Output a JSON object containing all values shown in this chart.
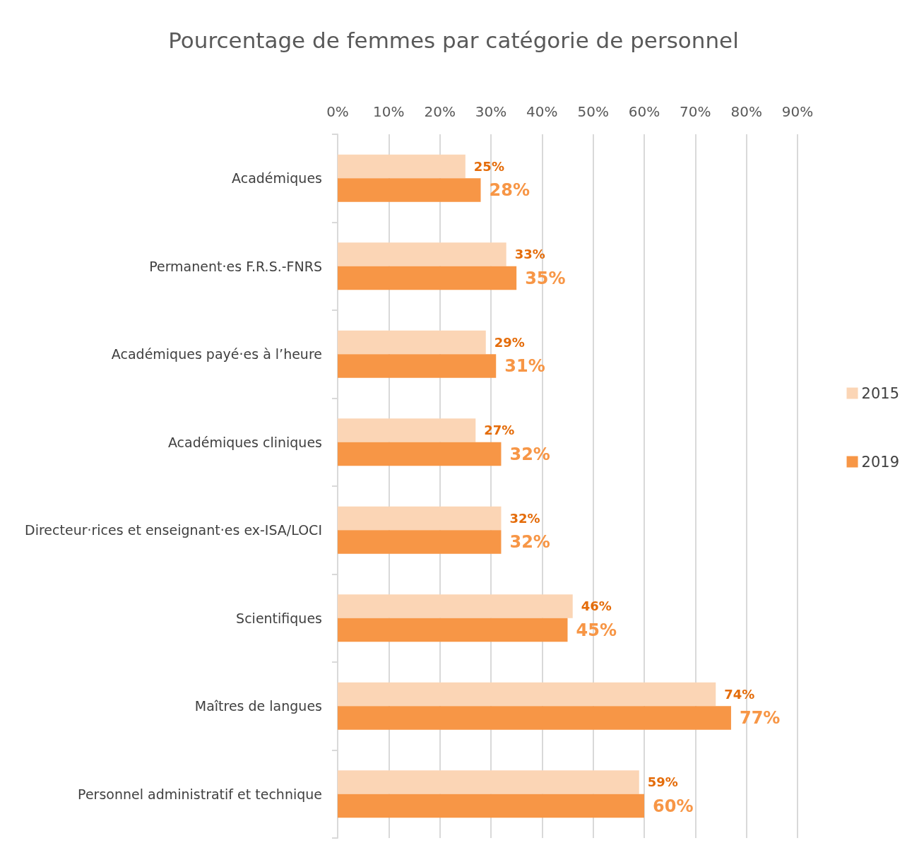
{
  "chart_data": {
    "type": "bar",
    "orientation": "horizontal",
    "title": "Pourcentage de femmes par catégorie de personnel",
    "categories": [
      "Académiques",
      "Permanent·es F.R.S.-FNRS",
      "Académiques payé·es à l’heure",
      "Académiques cliniques",
      "Directeur·rices et enseignant·es ex-ISA/LOCI",
      "Scientifiques",
      "Maîtres de langues",
      "Personnel administratif et technique"
    ],
    "series": [
      {
        "name": "2015",
        "color": "#fbd5b5",
        "values": [
          25,
          33,
          29,
          27,
          32,
          46,
          74,
          59
        ],
        "value_labels": [
          "25%",
          "33%",
          "29%",
          "27%",
          "32%",
          "46%",
          "74%",
          "59%"
        ]
      },
      {
        "name": "2019",
        "color": "#f79646",
        "values": [
          28,
          35,
          31,
          32,
          32,
          45,
          77,
          60
        ],
        "value_labels": [
          "28%",
          "35%",
          "31%",
          "32%",
          "32%",
          "45%",
          "77%",
          "60%"
        ]
      }
    ],
    "xlim": [
      0,
      90
    ],
    "xticks": [
      {
        "value": 0,
        "label": "0%"
      },
      {
        "value": 10,
        "label": "10%"
      },
      {
        "value": 20,
        "label": "20%"
      },
      {
        "value": 30,
        "label": "30%"
      },
      {
        "value": 40,
        "label": "40%"
      },
      {
        "value": 50,
        "label": "50%"
      },
      {
        "value": 60,
        "label": "60%"
      },
      {
        "value": 70,
        "label": "70%"
      },
      {
        "value": 80,
        "label": "80%"
      },
      {
        "value": 90,
        "label": "90%"
      }
    ],
    "grid": "x",
    "legend": "right"
  }
}
